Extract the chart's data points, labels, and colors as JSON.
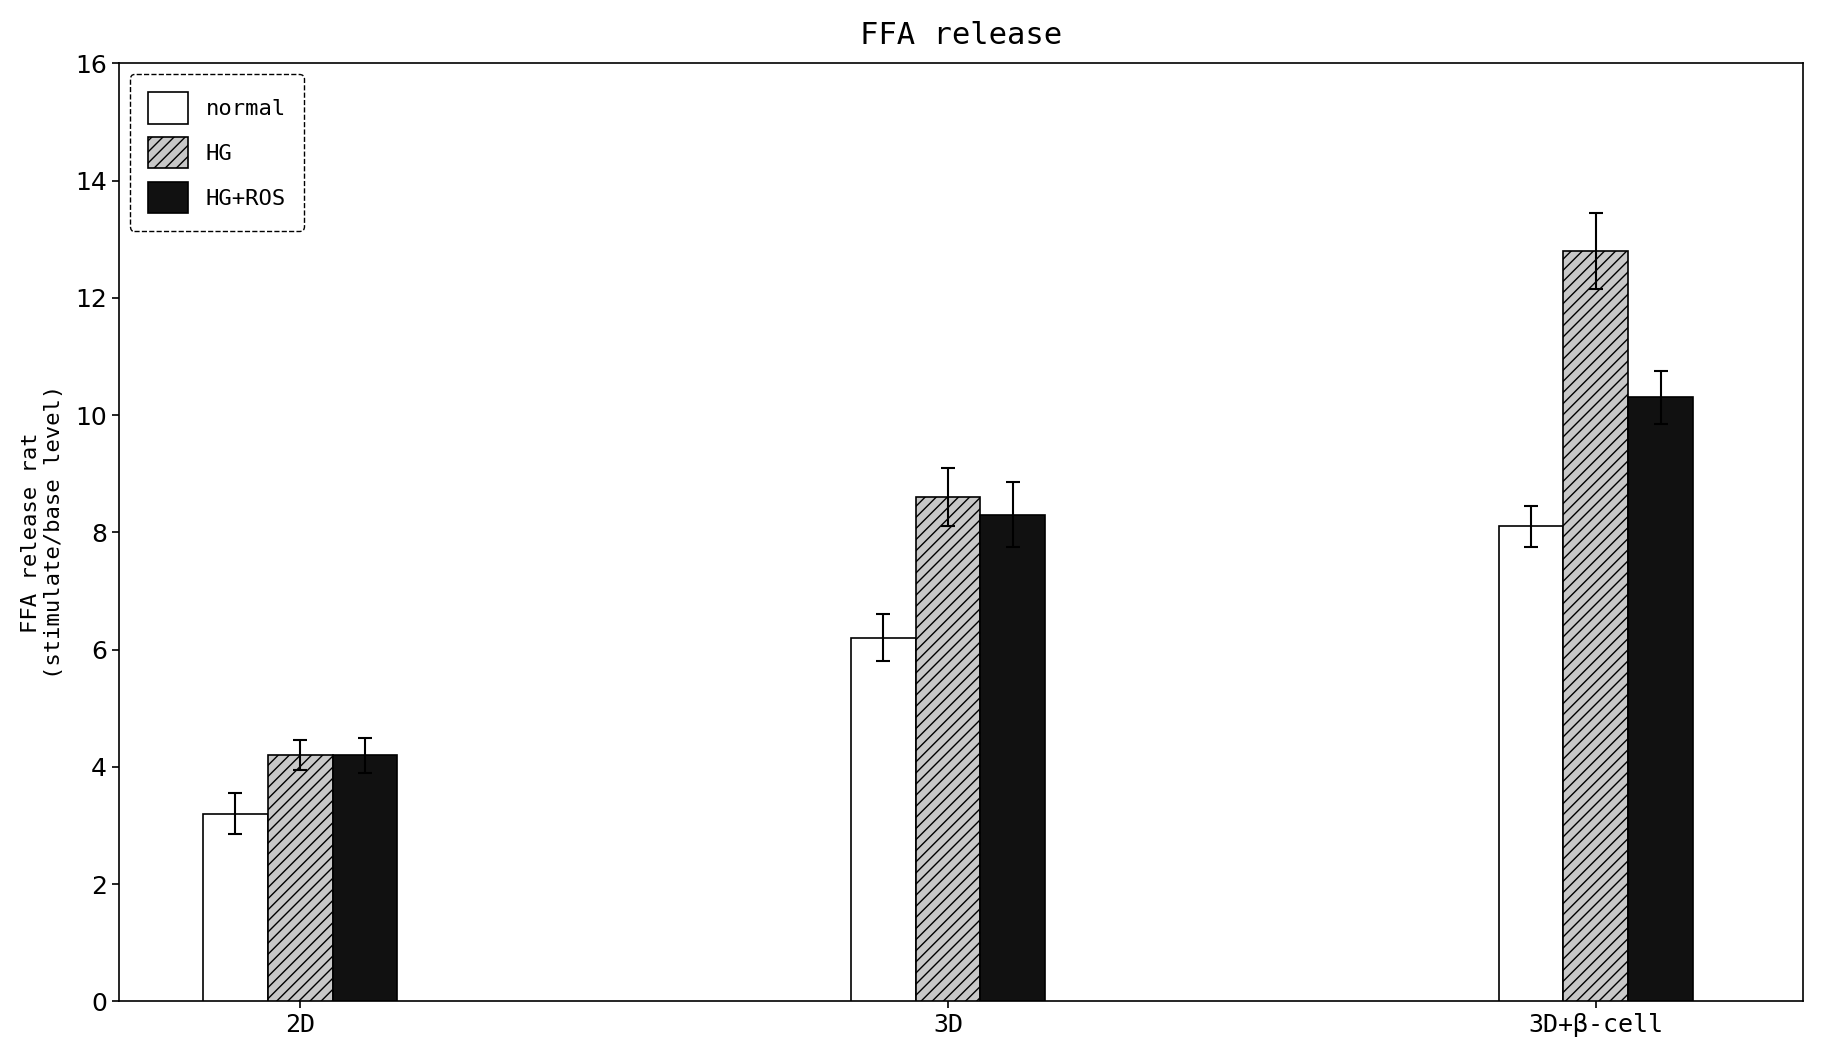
{
  "title": "FFA release",
  "ylabel": "FFA release rat\n(stimulate/base level)",
  "xlabel_categories": [
    "2D",
    "3D",
    "3D+β-cell"
  ],
  "groups": [
    "normal",
    "HG",
    "HG+ROS"
  ],
  "values": [
    [
      3.2,
      4.2,
      4.2
    ],
    [
      6.2,
      8.6,
      8.3
    ],
    [
      8.1,
      12.8,
      10.3
    ]
  ],
  "errors": [
    [
      0.35,
      0.25,
      0.3
    ],
    [
      0.4,
      0.5,
      0.55
    ],
    [
      0.35,
      0.65,
      0.45
    ]
  ],
  "bar_colors": [
    "#ffffff",
    "#c8c8c8",
    "#111111"
  ],
  "bar_edgecolors": [
    "#000000",
    "#000000",
    "#000000"
  ],
  "bar_hatches": [
    null,
    "///",
    null
  ],
  "ylim": [
    0,
    16
  ],
  "yticks": [
    0,
    2,
    4,
    6,
    8,
    10,
    12,
    14,
    16
  ],
  "title_fontsize": 22,
  "axis_fontsize": 16,
  "tick_fontsize": 18,
  "legend_fontsize": 16,
  "bar_width": 0.25,
  "group_positions": [
    1.0,
    3.5,
    6.0
  ],
  "background_color": "#ffffff"
}
